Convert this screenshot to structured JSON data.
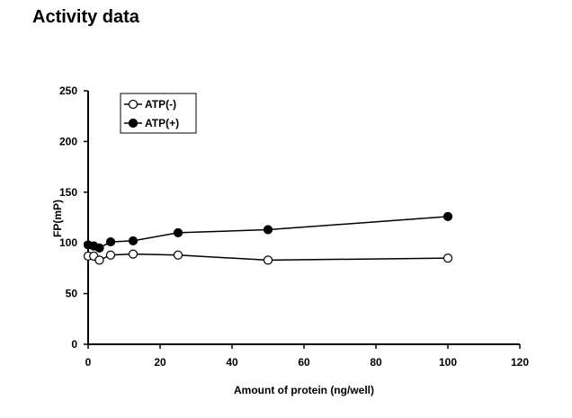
{
  "page": {
    "title": "Activity data"
  },
  "chart_data": {
    "type": "line",
    "title": "",
    "xlabel": "Amount of protein (ng/well)",
    "ylabel": "FP(mP)",
    "xlim": [
      0,
      120
    ],
    "ylim": [
      0,
      250
    ],
    "xticks": [
      0,
      20,
      40,
      60,
      80,
      100,
      120
    ],
    "yticks": [
      0,
      50,
      100,
      150,
      200,
      250
    ],
    "grid": false,
    "legend_position": "top-left",
    "series": [
      {
        "name": "ATP(-)",
        "marker": "open-circle",
        "x": [
          0,
          1.56,
          3.13,
          6.25,
          12.5,
          25,
          50,
          100
        ],
        "y": [
          87,
          87,
          83,
          88,
          89,
          88,
          83,
          85
        ]
      },
      {
        "name": "ATP(+)",
        "marker": "filled-circle",
        "x": [
          0,
          1.56,
          3.13,
          6.25,
          12.5,
          25,
          50,
          100
        ],
        "y": [
          98,
          97,
          95,
          101,
          102,
          110,
          113,
          126
        ]
      }
    ]
  }
}
